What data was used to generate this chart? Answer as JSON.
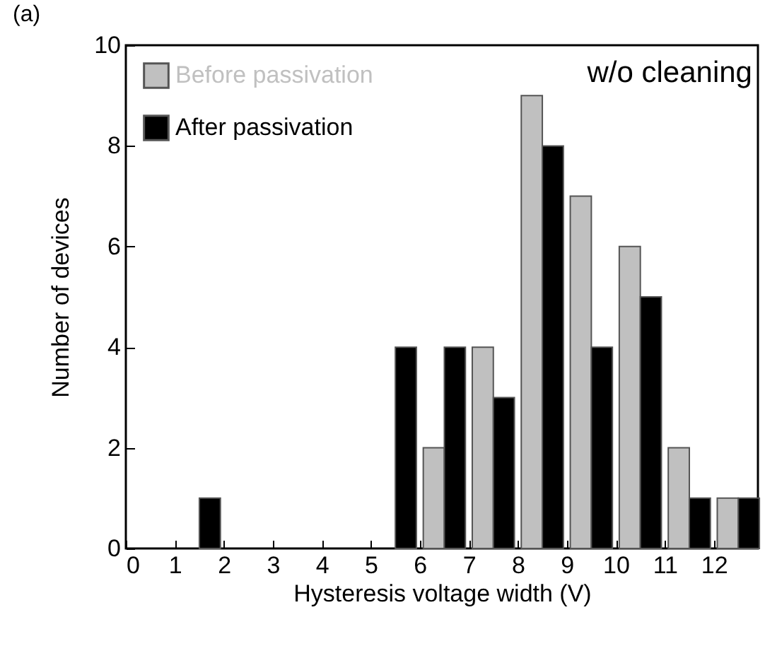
{
  "chart_data": {
    "type": "bar",
    "xlabel": "Hysteresis voltage width (V)",
    "ylabel": "Number of devices",
    "annotations": [
      "(a)",
      "w/o cleaning"
    ],
    "x": [
      0.5,
      1.5,
      2.5,
      3.5,
      4.5,
      5.5,
      6.5,
      7.5,
      8.5,
      9.5,
      10.5,
      11.5,
      12.5
    ],
    "series": [
      {
        "name": "Before passivation",
        "color": "#c0c0c0",
        "values": [
          0,
          0,
          0,
          0,
          0,
          0,
          2,
          4,
          9,
          7,
          6,
          2,
          1
        ]
      },
      {
        "name": "After passivation",
        "color": "#000000",
        "values": [
          0,
          1,
          0,
          0,
          0,
          4,
          4,
          3,
          8,
          4,
          5,
          1,
          1
        ]
      }
    ],
    "xlim": [
      0,
      12.9
    ],
    "xticks": [
      0,
      1,
      2,
      3,
      4,
      5,
      6,
      7,
      8,
      9,
      10,
      11,
      12
    ],
    "ylim": [
      0,
      10
    ],
    "yticks": [
      0,
      2,
      4,
      6,
      8,
      10
    ],
    "grid": false,
    "legend": "top left"
  }
}
